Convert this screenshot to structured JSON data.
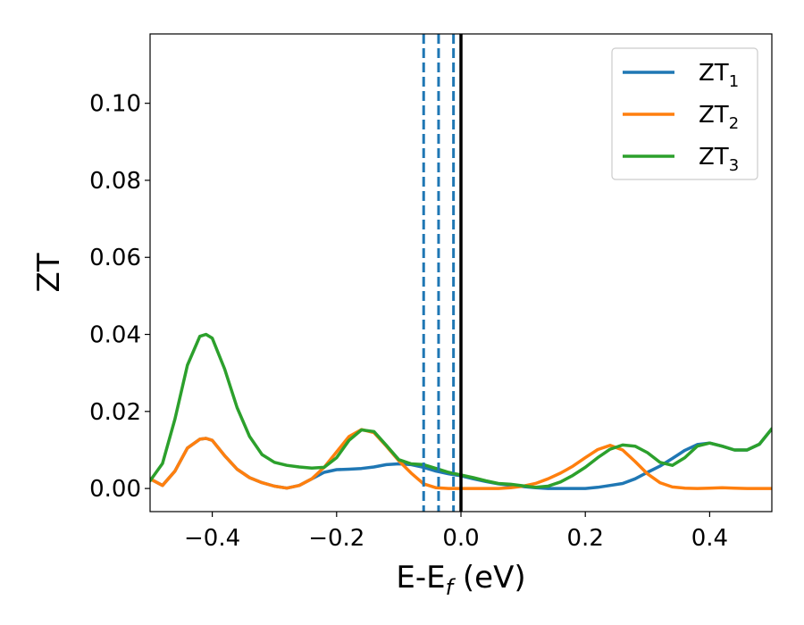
{
  "chart_data": {
    "type": "line",
    "title": "",
    "xlabel": {
      "base": "E-E",
      "sub": "f",
      "suffix": " (eV)"
    },
    "ylabel": "ZT",
    "xlim": [
      -0.5,
      0.5
    ],
    "ylim": [
      -0.006,
      0.118
    ],
    "xticks": [
      -0.4,
      -0.2,
      0.0,
      0.2,
      0.4
    ],
    "xtick_labels": [
      "−0.4",
      "−0.2",
      "0.0",
      "0.2",
      "0.4"
    ],
    "yticks": [
      0.0,
      0.02,
      0.04,
      0.06,
      0.08,
      0.1
    ],
    "ytick_labels": [
      "0.00",
      "0.02",
      "0.04",
      "0.06",
      "0.08",
      "0.10"
    ],
    "grid": false,
    "legend_position": "top-right",
    "vlines": [
      {
        "x": -0.06,
        "style": "dashed",
        "color": "#1f77b4"
      },
      {
        "x": -0.036,
        "style": "dashed",
        "color": "#1f77b4"
      },
      {
        "x": -0.012,
        "style": "dashed",
        "color": "#1f77b4"
      },
      {
        "x": 0.0,
        "style": "solid",
        "color": "#000000"
      }
    ],
    "series": [
      {
        "name": "ZT",
        "name_sub": "1",
        "color": "#1f77b4",
        "x": [
          -0.5,
          -0.48,
          -0.46,
          -0.44,
          -0.42,
          -0.41,
          -0.4,
          -0.38,
          -0.36,
          -0.34,
          -0.32,
          -0.3,
          -0.28,
          -0.26,
          -0.24,
          -0.22,
          -0.2,
          -0.18,
          -0.16,
          -0.14,
          -0.12,
          -0.1,
          -0.08,
          -0.06,
          -0.04,
          -0.02,
          0.0,
          0.02,
          0.04,
          0.06,
          0.08,
          0.1,
          0.12,
          0.14,
          0.16,
          0.18,
          0.2,
          0.22,
          0.24,
          0.26,
          0.28,
          0.3,
          0.32,
          0.34,
          0.36,
          0.38,
          0.4,
          0.42,
          0.44,
          0.46,
          0.48,
          0.5
        ],
        "y": [
          0.0025,
          0.0008,
          0.0045,
          0.0105,
          0.0128,
          0.013,
          0.0125,
          0.0085,
          0.005,
          0.0028,
          0.0015,
          0.0006,
          0.0001,
          0.0008,
          0.0025,
          0.0042,
          0.0049,
          0.005,
          0.0052,
          0.0056,
          0.0062,
          0.0064,
          0.0062,
          0.0055,
          0.0045,
          0.0038,
          0.0033,
          0.0025,
          0.0018,
          0.0012,
          0.0008,
          0.0005,
          0.0002,
          0.0,
          0.0,
          0.0,
          0.0,
          0.0003,
          0.0008,
          0.0013,
          0.0025,
          0.0042,
          0.0058,
          0.0078,
          0.0099,
          0.0114,
          0.0118,
          0.011,
          0.01,
          0.01,
          0.0115,
          0.0155
        ]
      },
      {
        "name": "ZT",
        "name_sub": "2",
        "color": "#ff7f0e",
        "x": [
          -0.5,
          -0.48,
          -0.46,
          -0.44,
          -0.42,
          -0.41,
          -0.4,
          -0.38,
          -0.36,
          -0.34,
          -0.32,
          -0.3,
          -0.28,
          -0.26,
          -0.24,
          -0.22,
          -0.2,
          -0.18,
          -0.16,
          -0.14,
          -0.12,
          -0.1,
          -0.08,
          -0.06,
          -0.04,
          -0.02,
          0.0,
          0.02,
          0.04,
          0.06,
          0.08,
          0.1,
          0.12,
          0.14,
          0.16,
          0.18,
          0.2,
          0.22,
          0.24,
          0.26,
          0.28,
          0.3,
          0.32,
          0.34,
          0.36,
          0.38,
          0.4,
          0.42,
          0.44,
          0.46,
          0.48,
          0.5
        ],
        "y": [
          0.0025,
          0.0008,
          0.0045,
          0.0105,
          0.0128,
          0.013,
          0.0125,
          0.0085,
          0.005,
          0.0028,
          0.0015,
          0.0006,
          0.0001,
          0.0008,
          0.0025,
          0.0055,
          0.0095,
          0.0135,
          0.0153,
          0.0145,
          0.011,
          0.0072,
          0.004,
          0.0012,
          0.0002,
          0.0,
          0.0,
          0.0,
          0.0,
          0.0,
          0.0002,
          0.0006,
          0.0013,
          0.0025,
          0.004,
          0.0058,
          0.008,
          0.0101,
          0.0112,
          0.01,
          0.007,
          0.0038,
          0.0015,
          0.0004,
          0.0001,
          0.0,
          0.0001,
          0.0002,
          0.0001,
          0.0,
          0.0,
          0.0
        ]
      },
      {
        "name": "ZT",
        "name_sub": "3",
        "color": "#2ca02c",
        "x": [
          -0.5,
          -0.48,
          -0.46,
          -0.44,
          -0.42,
          -0.41,
          -0.4,
          -0.38,
          -0.36,
          -0.34,
          -0.32,
          -0.3,
          -0.28,
          -0.26,
          -0.24,
          -0.22,
          -0.2,
          -0.18,
          -0.16,
          -0.14,
          -0.12,
          -0.1,
          -0.08,
          -0.06,
          -0.04,
          -0.02,
          0.0,
          0.02,
          0.04,
          0.06,
          0.08,
          0.1,
          0.12,
          0.14,
          0.16,
          0.18,
          0.2,
          0.22,
          0.24,
          0.26,
          0.28,
          0.3,
          0.32,
          0.34,
          0.36,
          0.38,
          0.4,
          0.42,
          0.44,
          0.46,
          0.48,
          0.5
        ],
        "y": [
          0.002,
          0.0065,
          0.018,
          0.032,
          0.0395,
          0.04,
          0.039,
          0.031,
          0.021,
          0.0135,
          0.0088,
          0.0068,
          0.006,
          0.0056,
          0.0053,
          0.0055,
          0.008,
          0.0125,
          0.0152,
          0.0148,
          0.0112,
          0.0075,
          0.0064,
          0.0062,
          0.0052,
          0.0042,
          0.0035,
          0.0028,
          0.002,
          0.0013,
          0.0011,
          0.0007,
          0.0003,
          0.0006,
          0.0017,
          0.0034,
          0.0055,
          0.008,
          0.0102,
          0.0113,
          0.011,
          0.0093,
          0.0068,
          0.006,
          0.008,
          0.011,
          0.0118,
          0.011,
          0.01,
          0.01,
          0.0115,
          0.0155
        ]
      }
    ]
  }
}
